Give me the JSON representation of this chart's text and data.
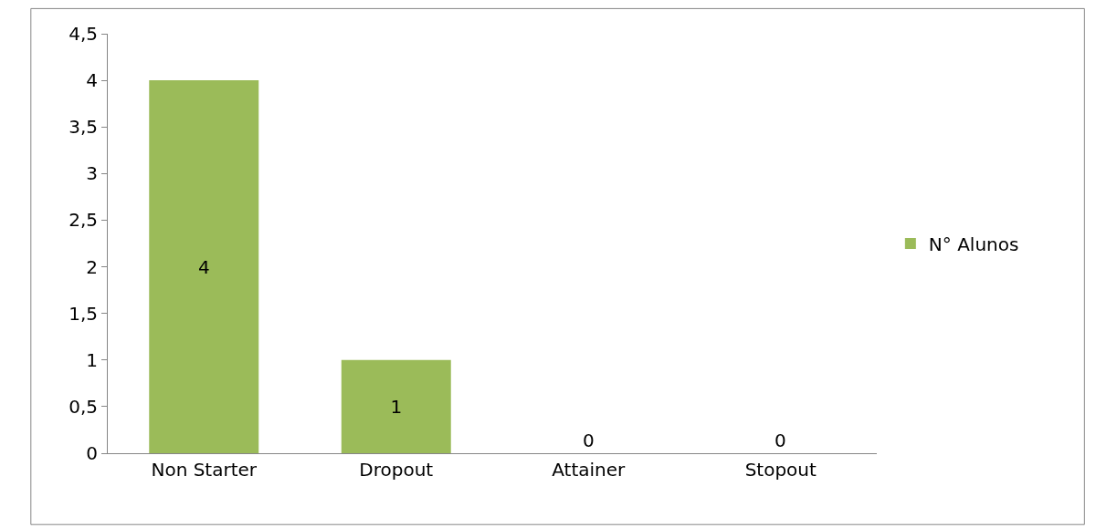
{
  "chart_data": {
    "type": "bar",
    "categories": [
      "Non Starter",
      "Dropout",
      "Attainer",
      "Stopout"
    ],
    "series": [
      {
        "name": "N° Alunos",
        "color": "#9bbb59",
        "values": [
          4,
          1,
          0,
          0
        ]
      }
    ],
    "ylim": [
      0,
      4.5
    ],
    "yticks": [
      0,
      {
        "value": 0.5,
        "label": "0,5"
      },
      1,
      {
        "value": 1.5,
        "label": "1,5"
      },
      2,
      {
        "value": 2.5,
        "label": "2,5"
      },
      3,
      {
        "value": 3.5,
        "label": "3,5"
      },
      4,
      {
        "value": 4.5,
        "label": "4,5"
      }
    ],
    "data_labels": true,
    "grid": false,
    "legend": "right"
  }
}
